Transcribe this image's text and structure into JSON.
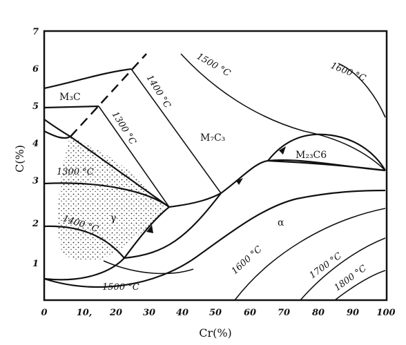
{
  "diagram": {
    "x_axis_label": "Cr(%)",
    "y_axis_label": "C(%)",
    "x_ticks": [
      "0",
      "10,",
      "20",
      "30",
      "40",
      "50",
      "60",
      "70",
      "80",
      "90",
      "100"
    ],
    "y_ticks": [
      "1",
      "2",
      "3",
      "4",
      "5",
      "6",
      "7"
    ],
    "phase_labels": {
      "m3c": "M₃C",
      "m7c3": "M₇C₃",
      "m23c6": "M₂₃C6",
      "gamma": "γ",
      "alpha": "α"
    },
    "isotherm_labels": {
      "t1300_left": "1300 °C",
      "t1400_left": "1400 °C",
      "t1500_bottom": "1500 °C",
      "t1300_diag": "1300 °C",
      "t1400_diag": "1400 °C",
      "t1500_top": "1500 °C",
      "t1600_top": "1600 °C",
      "t1600_bottom": "1600 °C",
      "t1700": "1700 °C",
      "t1800": "1800 °C"
    }
  }
}
